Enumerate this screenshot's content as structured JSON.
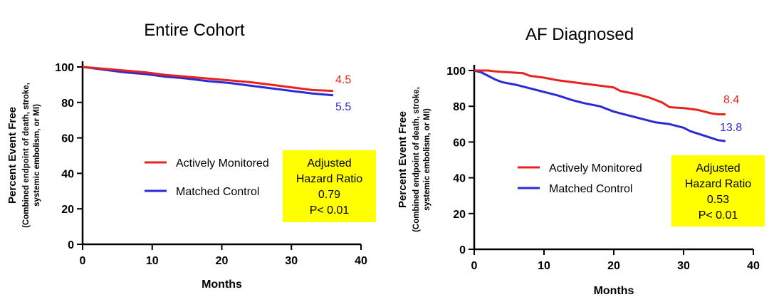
{
  "chart_data": [
    {
      "type": "line",
      "title": "Entire Cohort",
      "xlabel": "Months",
      "ylabel": "Percent Event Free",
      "ylabel_sub": [
        "(Combined endpoint of death, stroke,",
        "systemic embolism, or MI)"
      ],
      "xlim": [
        0,
        40
      ],
      "ylim": [
        0,
        100
      ],
      "xticks": [
        0,
        10,
        20,
        30,
        40
      ],
      "yticks": [
        0,
        20,
        40,
        60,
        80,
        100
      ],
      "series": [
        {
          "name": "Actively Monitored",
          "color": "#e8231f",
          "points": [
            [
              0,
              100
            ],
            [
              3,
              99
            ],
            [
              6,
              98
            ],
            [
              9,
              97
            ],
            [
              12,
              95.5
            ],
            [
              15,
              94.5
            ],
            [
              18,
              93.5
            ],
            [
              21,
              92.5
            ],
            [
              24,
              91.5
            ],
            [
              27,
              90
            ],
            [
              30,
              88.5
            ],
            [
              33,
              87
            ],
            [
              36,
              86.5
            ]
          ],
          "end_label": "4.5"
        },
        {
          "name": "Matched Control",
          "color": "#2b2bd6",
          "points": [
            [
              0,
              100
            ],
            [
              3,
              98.5
            ],
            [
              6,
              97
            ],
            [
              9,
              96
            ],
            [
              12,
              94.5
            ],
            [
              15,
              93.5
            ],
            [
              18,
              92
            ],
            [
              21,
              91
            ],
            [
              24,
              89.5
            ],
            [
              27,
              88
            ],
            [
              30,
              86.5
            ],
            [
              33,
              85
            ],
            [
              36,
              84
            ]
          ],
          "end_label": "5.5"
        }
      ],
      "hr_box": {
        "lines": [
          "Adjusted",
          "Hazard Ratio",
          "0.79",
          "P< 0.01"
        ],
        "color": "#ffff00"
      }
    },
    {
      "type": "line",
      "title": "AF Diagnosed",
      "xlabel": "Months",
      "ylabel": "Percent Event Free",
      "ylabel_sub": [
        "(Combined endpoint of death, stroke,",
        "systemic embolism, or MI)"
      ],
      "xlim": [
        0,
        40
      ],
      "ylim": [
        0,
        100
      ],
      "xticks": [
        0,
        10,
        20,
        30,
        40
      ],
      "yticks": [
        0,
        20,
        40,
        60,
        80,
        100
      ],
      "series": [
        {
          "name": "Actively Monitored",
          "color": "#e8231f",
          "points": [
            [
              0,
              100
            ],
            [
              2,
              100
            ],
            [
              3,
              99.5
            ],
            [
              5,
              99
            ],
            [
              7,
              98.5
            ],
            [
              8,
              97
            ],
            [
              10,
              96
            ],
            [
              12,
              94.5
            ],
            [
              14,
              93.5
            ],
            [
              16,
              92.5
            ],
            [
              18,
              91.5
            ],
            [
              20,
              90.5
            ],
            [
              21,
              88.5
            ],
            [
              23,
              87
            ],
            [
              25,
              85
            ],
            [
              26,
              83.5
            ],
            [
              27,
              82
            ],
            [
              28,
              79.5
            ],
            [
              30,
              79
            ],
            [
              32,
              78
            ],
            [
              33,
              77
            ],
            [
              34,
              76
            ],
            [
              35,
              75.5
            ],
            [
              36,
              75.5
            ]
          ],
          "end_label": "8.4"
        },
        {
          "name": "Matched Control",
          "color": "#2b2bd6",
          "points": [
            [
              0,
              100
            ],
            [
              1,
              99
            ],
            [
              2,
              97
            ],
            [
              3,
              95
            ],
            [
              4,
              93.5
            ],
            [
              6,
              92
            ],
            [
              8,
              90
            ],
            [
              10,
              88
            ],
            [
              12,
              86
            ],
            [
              14,
              83.5
            ],
            [
              16,
              81.5
            ],
            [
              18,
              80
            ],
            [
              20,
              77
            ],
            [
              22,
              75
            ],
            [
              24,
              73
            ],
            [
              26,
              71
            ],
            [
              28,
              70
            ],
            [
              30,
              68
            ],
            [
              31,
              66
            ],
            [
              33,
              63.5
            ],
            [
              35,
              61
            ],
            [
              36,
              60.5
            ]
          ],
          "end_label": "13.8"
        }
      ],
      "hr_box": {
        "lines": [
          "Adjusted",
          "Hazard Ratio",
          "0.53",
          "P< 0.01"
        ],
        "color": "#ffff00"
      }
    }
  ]
}
